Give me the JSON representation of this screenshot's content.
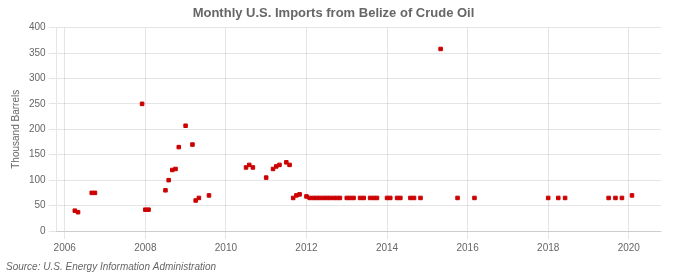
{
  "chart_data": {
    "type": "scatter",
    "title": "Monthly U.S. Imports from Belize of Crude Oil",
    "ylabel": "Thousand Barrels",
    "source": "Source: U.S. Energy Information Administration",
    "color": "#cc0000",
    "marker": "square",
    "grid": true,
    "xlim": [
      2005.8,
      2020.8
    ],
    "ylim": [
      0,
      400
    ],
    "xticks": [
      2006,
      2008,
      2010,
      2012,
      2014,
      2016,
      2018,
      2020
    ],
    "yticks": [
      0,
      50,
      100,
      150,
      200,
      250,
      300,
      350,
      400
    ],
    "x": [
      2006.25,
      2006.33,
      2006.67,
      2006.75,
      2007.92,
      2008.0,
      2008.08,
      2008.5,
      2008.58,
      2008.67,
      2008.75,
      2008.83,
      2009.0,
      2009.17,
      2009.25,
      2009.33,
      2009.58,
      2010.5,
      2010.58,
      2010.67,
      2011.0,
      2011.17,
      2011.25,
      2011.33,
      2011.5,
      2011.58,
      2011.67,
      2011.75,
      2011.83,
      2012.0,
      2012.08,
      2012.17,
      2012.25,
      2012.33,
      2012.42,
      2012.5,
      2012.58,
      2012.67,
      2012.75,
      2012.83,
      2013.0,
      2013.08,
      2013.17,
      2013.33,
      2013.42,
      2013.58,
      2013.67,
      2013.75,
      2014.0,
      2014.08,
      2014.25,
      2014.33,
      2014.58,
      2014.67,
      2014.83,
      2015.33,
      2015.75,
      2016.17,
      2018.0,
      2018.25,
      2018.42,
      2019.5,
      2019.67,
      2019.83,
      2020.08
    ],
    "values": [
      40,
      37,
      75,
      75,
      250,
      42,
      42,
      80,
      100,
      120,
      122,
      165,
      207,
      170,
      60,
      65,
      70,
      125,
      130,
      125,
      105,
      122,
      127,
      130,
      135,
      130,
      65,
      70,
      72,
      68,
      65,
      65,
      65,
      65,
      65,
      65,
      65,
      65,
      65,
      65,
      65,
      65,
      65,
      65,
      65,
      65,
      65,
      65,
      65,
      65,
      65,
      65,
      65,
      65,
      65,
      358,
      65,
      65,
      65,
      65,
      65,
      65,
      65,
      65,
      70
    ]
  }
}
